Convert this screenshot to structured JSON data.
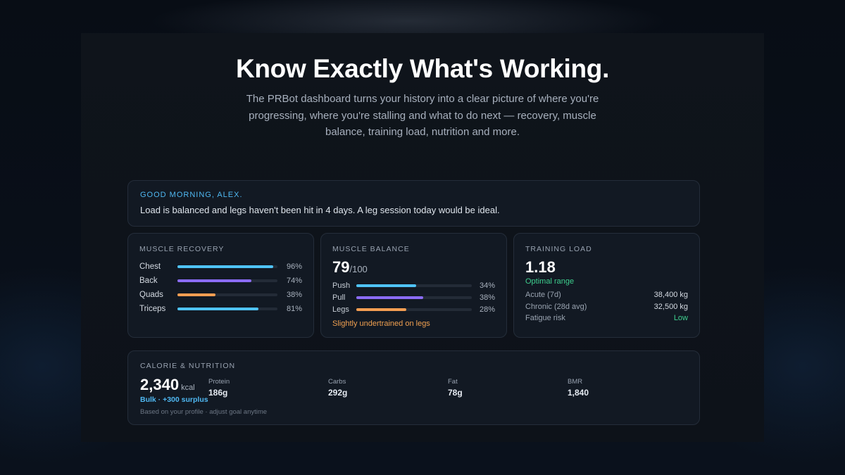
{
  "hero": {
    "title": "Know Exactly What's Working.",
    "subtitle": "The PRBot dashboard turns your history into a clear picture of where you're progressing, where you're stalling and what to do next — recovery, muscle balance, training load, nutrition and more."
  },
  "greeting": {
    "label": "GOOD MORNING, ALEX.",
    "message": "Load is balanced and legs haven't been hit in 4 days. A leg session today would be ideal."
  },
  "muscle_recovery": {
    "title": "MUSCLE RECOVERY",
    "items": [
      {
        "label": "Chest",
        "value": "96%",
        "level": 0.96,
        "color": "#4fc3f7"
      },
      {
        "label": "Back",
        "value": "74%",
        "level": 0.74,
        "color": "#8b6cf6"
      },
      {
        "label": "Quads",
        "value": "38%",
        "level": 0.38,
        "color": "#f59e52"
      },
      {
        "label": "Triceps",
        "value": "81%",
        "level": 0.81,
        "color": "#4fc3f7"
      }
    ]
  },
  "muscle_balance": {
    "title": "MUSCLE BALANCE",
    "score": "79",
    "score_max": "/100",
    "items": [
      {
        "label": "Push",
        "value": "34%",
        "level": 0.52,
        "color": "#4fc3f7"
      },
      {
        "label": "Pull",
        "value": "38%",
        "level": 0.58,
        "color": "#8b6cf6"
      },
      {
        "label": "Legs",
        "value": "28%",
        "level": 0.43,
        "color": "#f59e52"
      }
    ],
    "note": "Slightly undertrained on legs"
  },
  "training_load": {
    "title": "TRAINING LOAD",
    "value": "1.18",
    "status": "Optimal range",
    "rows": [
      {
        "label": "Acute (7d)",
        "value": "38,400 kg"
      },
      {
        "label": "Chronic (28d avg)",
        "value": "32,500 kg"
      },
      {
        "label": "Fatigue risk",
        "value": "Low"
      }
    ]
  },
  "nutrition": {
    "title": "CALORIE & NUTRITION",
    "calories": "2,340",
    "unit": "kcal",
    "goal": "Bulk · +300 surplus",
    "footnote": "Based on your profile · adjust goal anytime",
    "macros": [
      {
        "label": "Protein",
        "value": "186g"
      },
      {
        "label": "Carbs",
        "value": "292g"
      },
      {
        "label": "Fat",
        "value": "78g"
      },
      {
        "label": "BMR",
        "value": "1,840"
      }
    ]
  }
}
